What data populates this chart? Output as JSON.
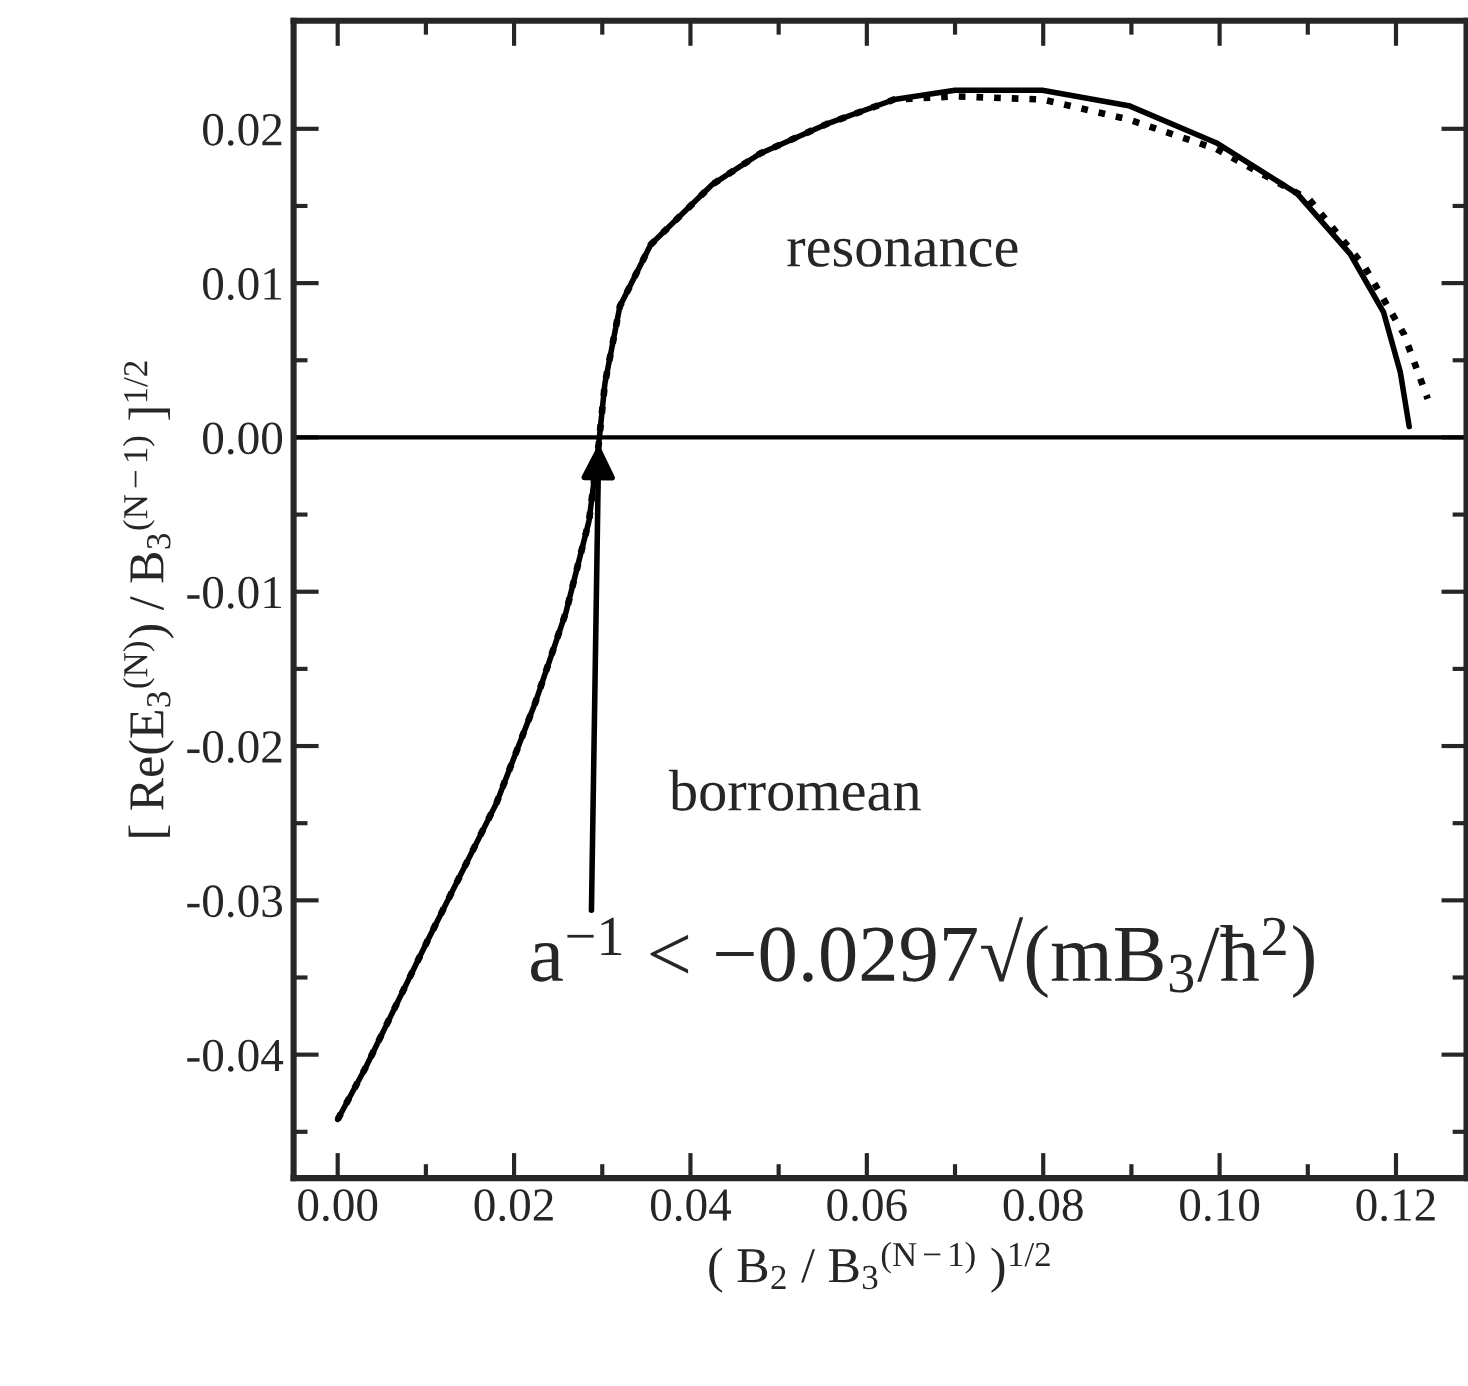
{
  "chart_data": {
    "type": "line",
    "xlabel": "( B$_{2}$ / B$_{3}$$^{(N−1)}$ )$^{1/2}$",
    "ylabel": "[ Re(E$_{3}$$^{(N)}$) / B$_{3}$$^{(N−1)}$ ]$^{1/2}$",
    "series": [
      {
        "color": "#000000",
        "line_style": "solid",
        "x": [
          0.0,
          0.0032,
          0.0102,
          0.018,
          0.0224,
          0.0259,
          0.0285,
          0.0296,
          0.0303,
          0.032,
          0.0355,
          0.0425,
          0.0479,
          0.0554,
          0.0631,
          0.07,
          0.0799,
          0.0897,
          0.0996,
          0.1088,
          0.1148,
          0.1186,
          0.1205,
          0.1215
        ],
        "values": [
          -0.0442,
          -0.0408,
          -0.0326,
          -0.0237,
          -0.0172,
          -0.0113,
          -0.0054,
          -0.0004,
          0.0035,
          0.0085,
          0.0125,
          0.0164,
          0.0184,
          0.0203,
          0.0219,
          0.0225,
          0.0225,
          0.0215,
          0.0191,
          0.0158,
          0.0119,
          0.0081,
          0.0042,
          0.0007
        ]
      },
      {
        "color": "#000000",
        "line_style": "dotted",
        "x": [
          0.0,
          0.0032,
          0.0102,
          0.018,
          0.0224,
          0.0259,
          0.0285,
          0.0296,
          0.0303,
          0.032,
          0.0355,
          0.0425,
          0.0479,
          0.0554,
          0.0631,
          0.07,
          0.0799,
          0.0897,
          0.0996,
          0.1102,
          0.1164,
          0.1209,
          0.1236
        ],
        "values": [
          -0.0442,
          -0.0408,
          -0.0326,
          -0.0237,
          -0.0172,
          -0.0113,
          -0.0054,
          -0.0004,
          0.0035,
          0.0085,
          0.0125,
          0.0164,
          0.0184,
          0.0203,
          0.0219,
          0.0221,
          0.0219,
          0.0206,
          0.0187,
          0.0154,
          0.0111,
          0.0067,
          0.0025
        ]
      }
    ],
    "xlim": [
      -0.005,
      0.128
    ],
    "ylim": [
      -0.048,
      0.027
    ],
    "xticks": [
      {
        "value": 0,
        "label": "0.00"
      },
      {
        "value": 0.02,
        "label": "0.02"
      },
      {
        "value": 0.04,
        "label": "0.04"
      },
      {
        "value": 0.06,
        "label": "0.06"
      },
      {
        "value": 0.08,
        "label": "0.08"
      },
      {
        "value": 0.1,
        "label": "0.10"
      },
      {
        "value": 0.12,
        "label": "0.12"
      }
    ],
    "yticks": [
      {
        "value": -0.04,
        "label": "-0.04"
      },
      {
        "value": -0.03,
        "label": "-0.03"
      },
      {
        "value": -0.02,
        "label": "-0.02"
      },
      {
        "value": -0.01,
        "label": "-0.01"
      },
      {
        "value": 0,
        "label": "0.00"
      },
      {
        "value": 0.01,
        "label": "0.01"
      },
      {
        "value": 0.02,
        "label": "0.02"
      }
    ],
    "ref_lines": [
      {
        "axis": "y",
        "value": 0,
        "color": "#000000",
        "line_style": "solid"
      }
    ],
    "annotations": [
      "resonance",
      "borromean",
      {
        "text": "a$^{−1}$ < −0.0297√(mB$_{3}$/ħ$^{2}$)",
        "x": 0.0296,
        "y": -0.0004
      }
    ],
    "grid": false,
    "legend": false,
    "marker": "none"
  }
}
